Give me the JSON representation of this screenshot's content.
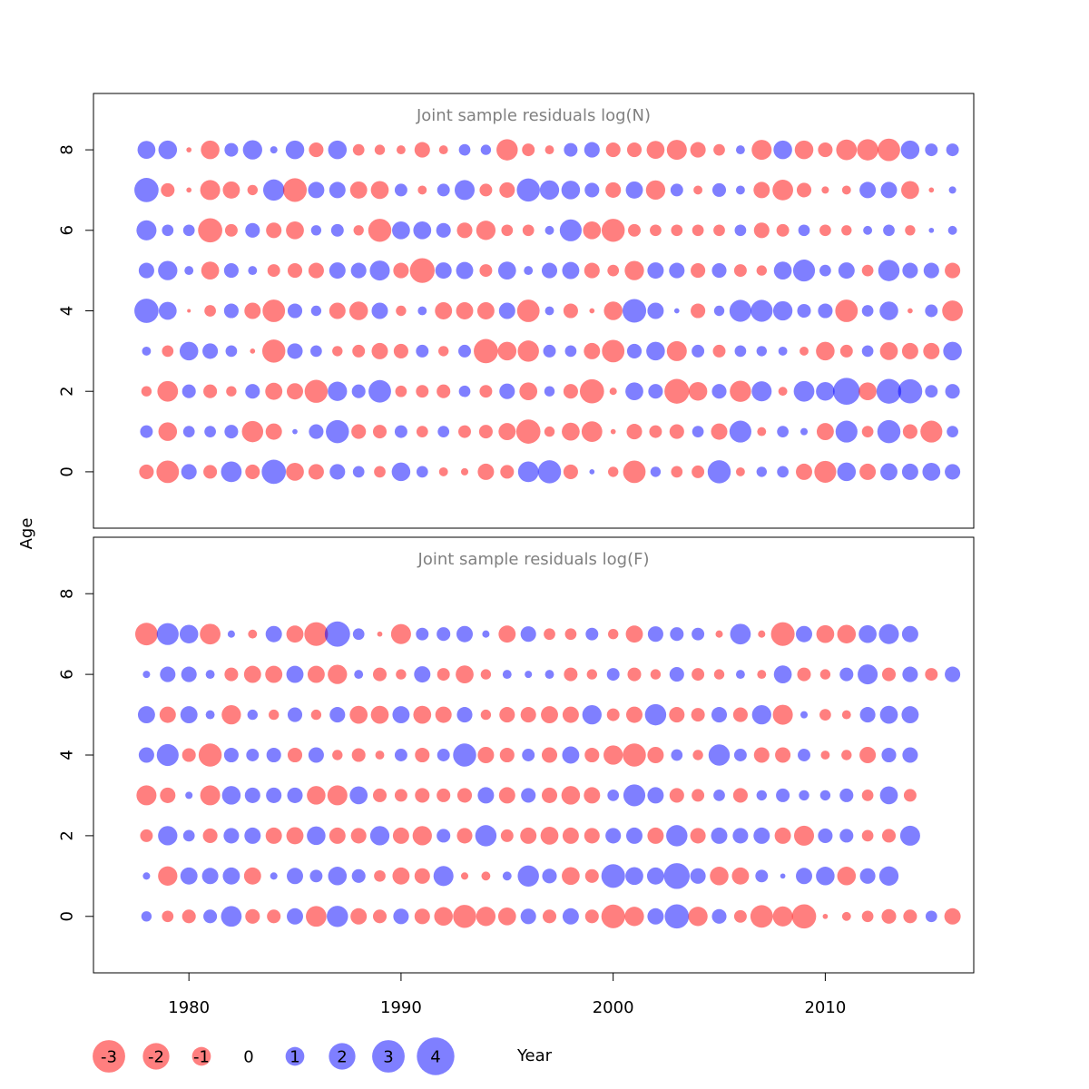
{
  "chart_data": {
    "type": "scatter",
    "subtype": "bubble",
    "xlabel": "Year",
    "ylabel": "Age",
    "xlim": [
      1975.5,
      2017
    ],
    "xticks": [
      1980,
      1990,
      2000,
      2010
    ],
    "colors": {
      "negative": "#ff5a5a",
      "positive": "#5a5aff"
    },
    "panels": [
      {
        "title": "Joint sample residuals log(N)",
        "ylim": [
          -1.4,
          9.4
        ],
        "yticks": [
          0,
          2,
          4,
          6,
          8
        ],
        "ages": [
          0,
          1,
          2,
          3,
          4,
          5,
          6,
          7,
          8
        ],
        "years_start": 1978,
        "years_end": 2016,
        "residuals": [
          [
            -0.8,
            -1.9,
            0.9,
            -0.7,
            1.6,
            -0.8,
            2.2,
            -1.2,
            -0.9,
            0.9,
            0.5,
            -0.5,
            1.3,
            0.5,
            -0.3,
            -0.2,
            -1.0,
            -0.7,
            1.6,
            2.0,
            -0.8,
            0.1,
            -0.4,
            -1.9,
            0.4,
            -0.5,
            -0.6,
            2.0,
            -0.3,
            0.4,
            0.5,
            -1.0,
            -1.8,
            1.3,
            -1.0,
            1.1,
            1.0,
            1.2,
            0.9
          ],
          [
            0.6,
            -1.3,
            0.5,
            0.5,
            0.7,
            -1.7,
            -1.0,
            0.1,
            0.8,
            2.0,
            -0.8,
            -0.7,
            0.6,
            -0.5,
            0.5,
            -0.6,
            -0.7,
            -1.1,
            -2.2,
            -0.4,
            -1.2,
            -1.6,
            -0.1,
            -0.9,
            -0.6,
            -0.8,
            0.5,
            -1.0,
            1.8,
            -0.3,
            0.5,
            0.2,
            -1.1,
            1.8,
            -0.5,
            2.0,
            -0.8,
            -1.8,
            0.5
          ],
          [
            -0.4,
            -1.6,
            0.7,
            -0.7,
            -0.4,
            0.8,
            -1.1,
            -1.0,
            -2.0,
            1.4,
            0.7,
            1.9,
            -0.5,
            -0.6,
            -0.7,
            0.5,
            -0.6,
            0.9,
            -1.2,
            0.4,
            -0.8,
            -2.2,
            -0.2,
            1.2,
            0.8,
            -2.3,
            -1.3,
            0.8,
            -1.7,
            1.5,
            -0.3,
            1.6,
            1.3,
            2.7,
            -1.2,
            2.3,
            2.2,
            0.6,
            0.8
          ],
          [
            0.3,
            -0.5,
            1.3,
            0.9,
            0.5,
            -0.1,
            -2.0,
            0.9,
            0.5,
            -0.4,
            -0.6,
            -1.0,
            -0.8,
            0.6,
            -0.4,
            0.6,
            -2.2,
            -1.3,
            -1.7,
            0.6,
            0.5,
            -1.0,
            -1.9,
            0.8,
            1.3,
            -1.5,
            0.6,
            -0.6,
            0.5,
            0.4,
            0.3,
            -0.3,
            -1.3,
            -0.6,
            0.5,
            -1.2,
            -1.0,
            -1.0,
            1.3
          ],
          [
            2.2,
            1.2,
            -0.05,
            -0.5,
            0.8,
            -1.0,
            -1.9,
            0.8,
            0.4,
            -1.0,
            -1.3,
            1.0,
            -0.4,
            0.3,
            -1.1,
            -1.1,
            -1.1,
            1.0,
            -1.9,
            0.3,
            -0.8,
            -0.1,
            -1.3,
            2.1,
            1.0,
            0.1,
            -0.8,
            0.4,
            1.8,
            1.8,
            1.4,
            0.7,
            0.8,
            -1.9,
            0.5,
            1.3,
            -0.1,
            0.6,
            -1.6
          ],
          [
            0.9,
            1.4,
            0.3,
            -1.2,
            0.8,
            0.3,
            -0.6,
            -0.8,
            -0.9,
            1.0,
            0.9,
            1.5,
            -0.9,
            -2.3,
            1.0,
            1.1,
            -0.6,
            1.2,
            0.3,
            0.9,
            1.1,
            -0.9,
            -0.5,
            -1.4,
            1.0,
            0.9,
            -0.8,
            0.8,
            -0.6,
            -0.4,
            1.2,
            1.8,
            0.5,
            1.0,
            -0.5,
            1.7,
            0.9,
            0.9,
            -0.9
          ],
          [
            1.5,
            0.5,
            0.5,
            -2.2,
            -0.6,
            0.8,
            -0.9,
            -1.2,
            0.4,
            0.6,
            -0.4,
            -2.0,
            1.2,
            1.2,
            0.8,
            -0.9,
            -1.4,
            -0.5,
            -0.5,
            0.3,
            1.8,
            -1.2,
            -2.0,
            -0.6,
            -0.5,
            -0.5,
            -0.5,
            -0.5,
            0.5,
            -0.9,
            -0.6,
            0.5,
            -0.5,
            -0.4,
            0.3,
            0.5,
            -0.4,
            0.1,
            0.3
          ],
          [
            2.2,
            -0.7,
            -0.1,
            -1.5,
            -1.1,
            -0.4,
            1.7,
            -2.1,
            1.0,
            1.0,
            -1.1,
            -1.2,
            0.6,
            -0.3,
            0.6,
            1.5,
            -0.6,
            -0.9,
            2.0,
            1.4,
            1.3,
            0.8,
            -0.9,
            1.1,
            -1.4,
            0.6,
            -0.3,
            0.7,
            0.3,
            -1.0,
            -1.6,
            -0.8,
            -0.2,
            -0.3,
            1.0,
            1.0,
            -1.2,
            -0.1,
            0.2
          ],
          [
            1.2,
            1.3,
            -0.1,
            -1.3,
            0.7,
            1.4,
            0.2,
            1.3,
            -0.8,
            1.3,
            -0.5,
            -0.4,
            -0.3,
            -0.9,
            -0.3,
            0.5,
            0.4,
            -1.7,
            -0.6,
            -0.3,
            0.7,
            0.9,
            -0.8,
            -0.8,
            -1.2,
            -1.5,
            -0.9,
            -0.5,
            0.3,
            -1.5,
            1.3,
            -1.3,
            -0.8,
            -1.6,
            -1.7,
            -1.9,
            1.3,
            0.6,
            0.6
          ]
        ]
      },
      {
        "title": "Joint sample residuals log(F)",
        "ylim": [
          -1.4,
          9.4
        ],
        "yticks": [
          0,
          2,
          4,
          6,
          8
        ],
        "ages": [
          0,
          1,
          2,
          3,
          4,
          5,
          6,
          7
        ],
        "years_start": 1978,
        "years_end": 2016,
        "residuals": [
          [
            0.4,
            -0.5,
            -0.7,
            0.7,
            1.6,
            -0.8,
            -0.7,
            1.0,
            -1.6,
            1.7,
            -1.0,
            -0.7,
            0.9,
            -0.9,
            -1.3,
            -2.0,
            -1.4,
            -1.2,
            0.9,
            -0.7,
            1.0,
            -0.7,
            -2.1,
            -1.4,
            1.0,
            2.2,
            -1.4,
            0.8,
            -0.6,
            -1.9,
            -1.5,
            -2.2,
            -0.1,
            -0.3,
            -0.5,
            -0.8,
            -0.7,
            0.5,
            -1.0
          ],
          [
            0.2,
            -1.4,
            1.1,
            1.0,
            1.1,
            -1.1,
            0.2,
            1.0,
            0.6,
            1.3,
            0.7,
            -0.5,
            -1.1,
            -0.9,
            1.5,
            -0.2,
            -0.3,
            0.3,
            1.7,
            0.8,
            -1.2,
            -0.7,
            2.1,
            1.2,
            1.1,
            2.5,
            0.9,
            -1.3,
            -1.1,
            0.6,
            0.1,
            1.0,
            1.3,
            -1.3,
            0.9,
            1.4,
            0.0,
            0.0,
            0.0
          ],
          [
            -0.6,
            1.4,
            0.5,
            -0.8,
            0.9,
            1.0,
            -1.0,
            -1.1,
            1.3,
            -1.0,
            -0.9,
            1.4,
            -1.0,
            -1.4,
            0.7,
            -0.9,
            1.7,
            -0.6,
            -1.0,
            -1.2,
            -1.0,
            -0.9,
            0.9,
            1.0,
            -1.0,
            1.7,
            -0.9,
            1.0,
            0.9,
            1.0,
            -1.0,
            -1.5,
            0.8,
            0.7,
            -0.5,
            -0.7,
            1.5,
            0.0,
            0.0
          ],
          [
            -1.5,
            -0.9,
            0.2,
            -1.5,
            1.3,
            0.9,
            0.9,
            0.9,
            -1.3,
            -1.5,
            1.2,
            -0.7,
            -0.6,
            -0.8,
            -0.7,
            -0.8,
            1.0,
            -1.0,
            0.8,
            -0.9,
            -1.3,
            -1.0,
            0.5,
            1.8,
            1.0,
            -0.8,
            -0.6,
            0.5,
            -0.8,
            0.4,
            0.7,
            0.4,
            0.4,
            0.7,
            -0.5,
            1.2,
            -0.6,
            0.0,
            0.0
          ],
          [
            0.9,
            1.8,
            -0.7,
            -2.0,
            0.8,
            0.6,
            0.8,
            -0.8,
            0.9,
            -0.4,
            -0.7,
            -0.3,
            0.6,
            -0.8,
            0.6,
            2.0,
            -1.0,
            -0.8,
            0.6,
            -0.9,
            1.1,
            -0.8,
            -1.4,
            -2.0,
            -1.0,
            0.5,
            -0.4,
            1.7,
            0.6,
            -0.9,
            -0.9,
            0.6,
            -0.3,
            -0.4,
            -1.0,
            0.8,
            0.9,
            0.0,
            0.0
          ],
          [
            1.1,
            -1.0,
            1.1,
            0.3,
            -1.4,
            0.4,
            -0.4,
            0.8,
            -0.4,
            0.9,
            -1.2,
            -1.2,
            1.1,
            -1.2,
            -1.0,
            0.9,
            -0.4,
            -0.9,
            -0.9,
            -1.1,
            -1.0,
            1.4,
            -0.6,
            -1.0,
            1.7,
            -0.9,
            -0.7,
            0.9,
            -0.8,
            1.4,
            -1.5,
            0.2,
            -0.5,
            -0.3,
            0.9,
            1.2,
            1.1,
            0.0,
            0.0
          ],
          [
            0.2,
            0.9,
            0.9,
            0.3,
            -0.7,
            -1.1,
            -1.1,
            1.1,
            -1.1,
            -1.4,
            0.3,
            -0.7,
            -0.4,
            1.0,
            -0.6,
            -1.2,
            -0.4,
            0.3,
            0.2,
            0.3,
            -0.7,
            -0.4,
            0.6,
            -0.7,
            -0.4,
            0.8,
            -0.6,
            -0.4,
            0.3,
            -0.3,
            1.2,
            -0.7,
            -0.4,
            0.7,
            1.5,
            -0.7,
            0.9,
            -0.6,
            0.9
          ],
          [
            -1.9,
            1.8,
            1.3,
            -1.6,
            0.2,
            -0.3,
            1.0,
            -1.1,
            -2.1,
            2.4,
            0.5,
            -0.1,
            -1.5,
            0.6,
            0.7,
            1.0,
            0.2,
            -1.1,
            0.9,
            -0.5,
            -0.5,
            0.6,
            -0.4,
            -1.1,
            0.9,
            0.7,
            0.6,
            -0.2,
            1.6,
            -0.2,
            -2.1,
            1.0,
            -1.2,
            -1.3,
            1.2,
            1.5,
            1.0,
            0.0,
            0.0
          ]
        ]
      }
    ],
    "legend": [
      {
        "label": "-3",
        "value": -3
      },
      {
        "label": "-2",
        "value": -2
      },
      {
        "label": "-1",
        "value": -1
      },
      {
        "label": "0",
        "value": 0
      },
      {
        "label": "1",
        "value": 1
      },
      {
        "label": "2",
        "value": 2
      },
      {
        "label": "3",
        "value": 3
      },
      {
        "label": "4",
        "value": 4
      }
    ]
  }
}
